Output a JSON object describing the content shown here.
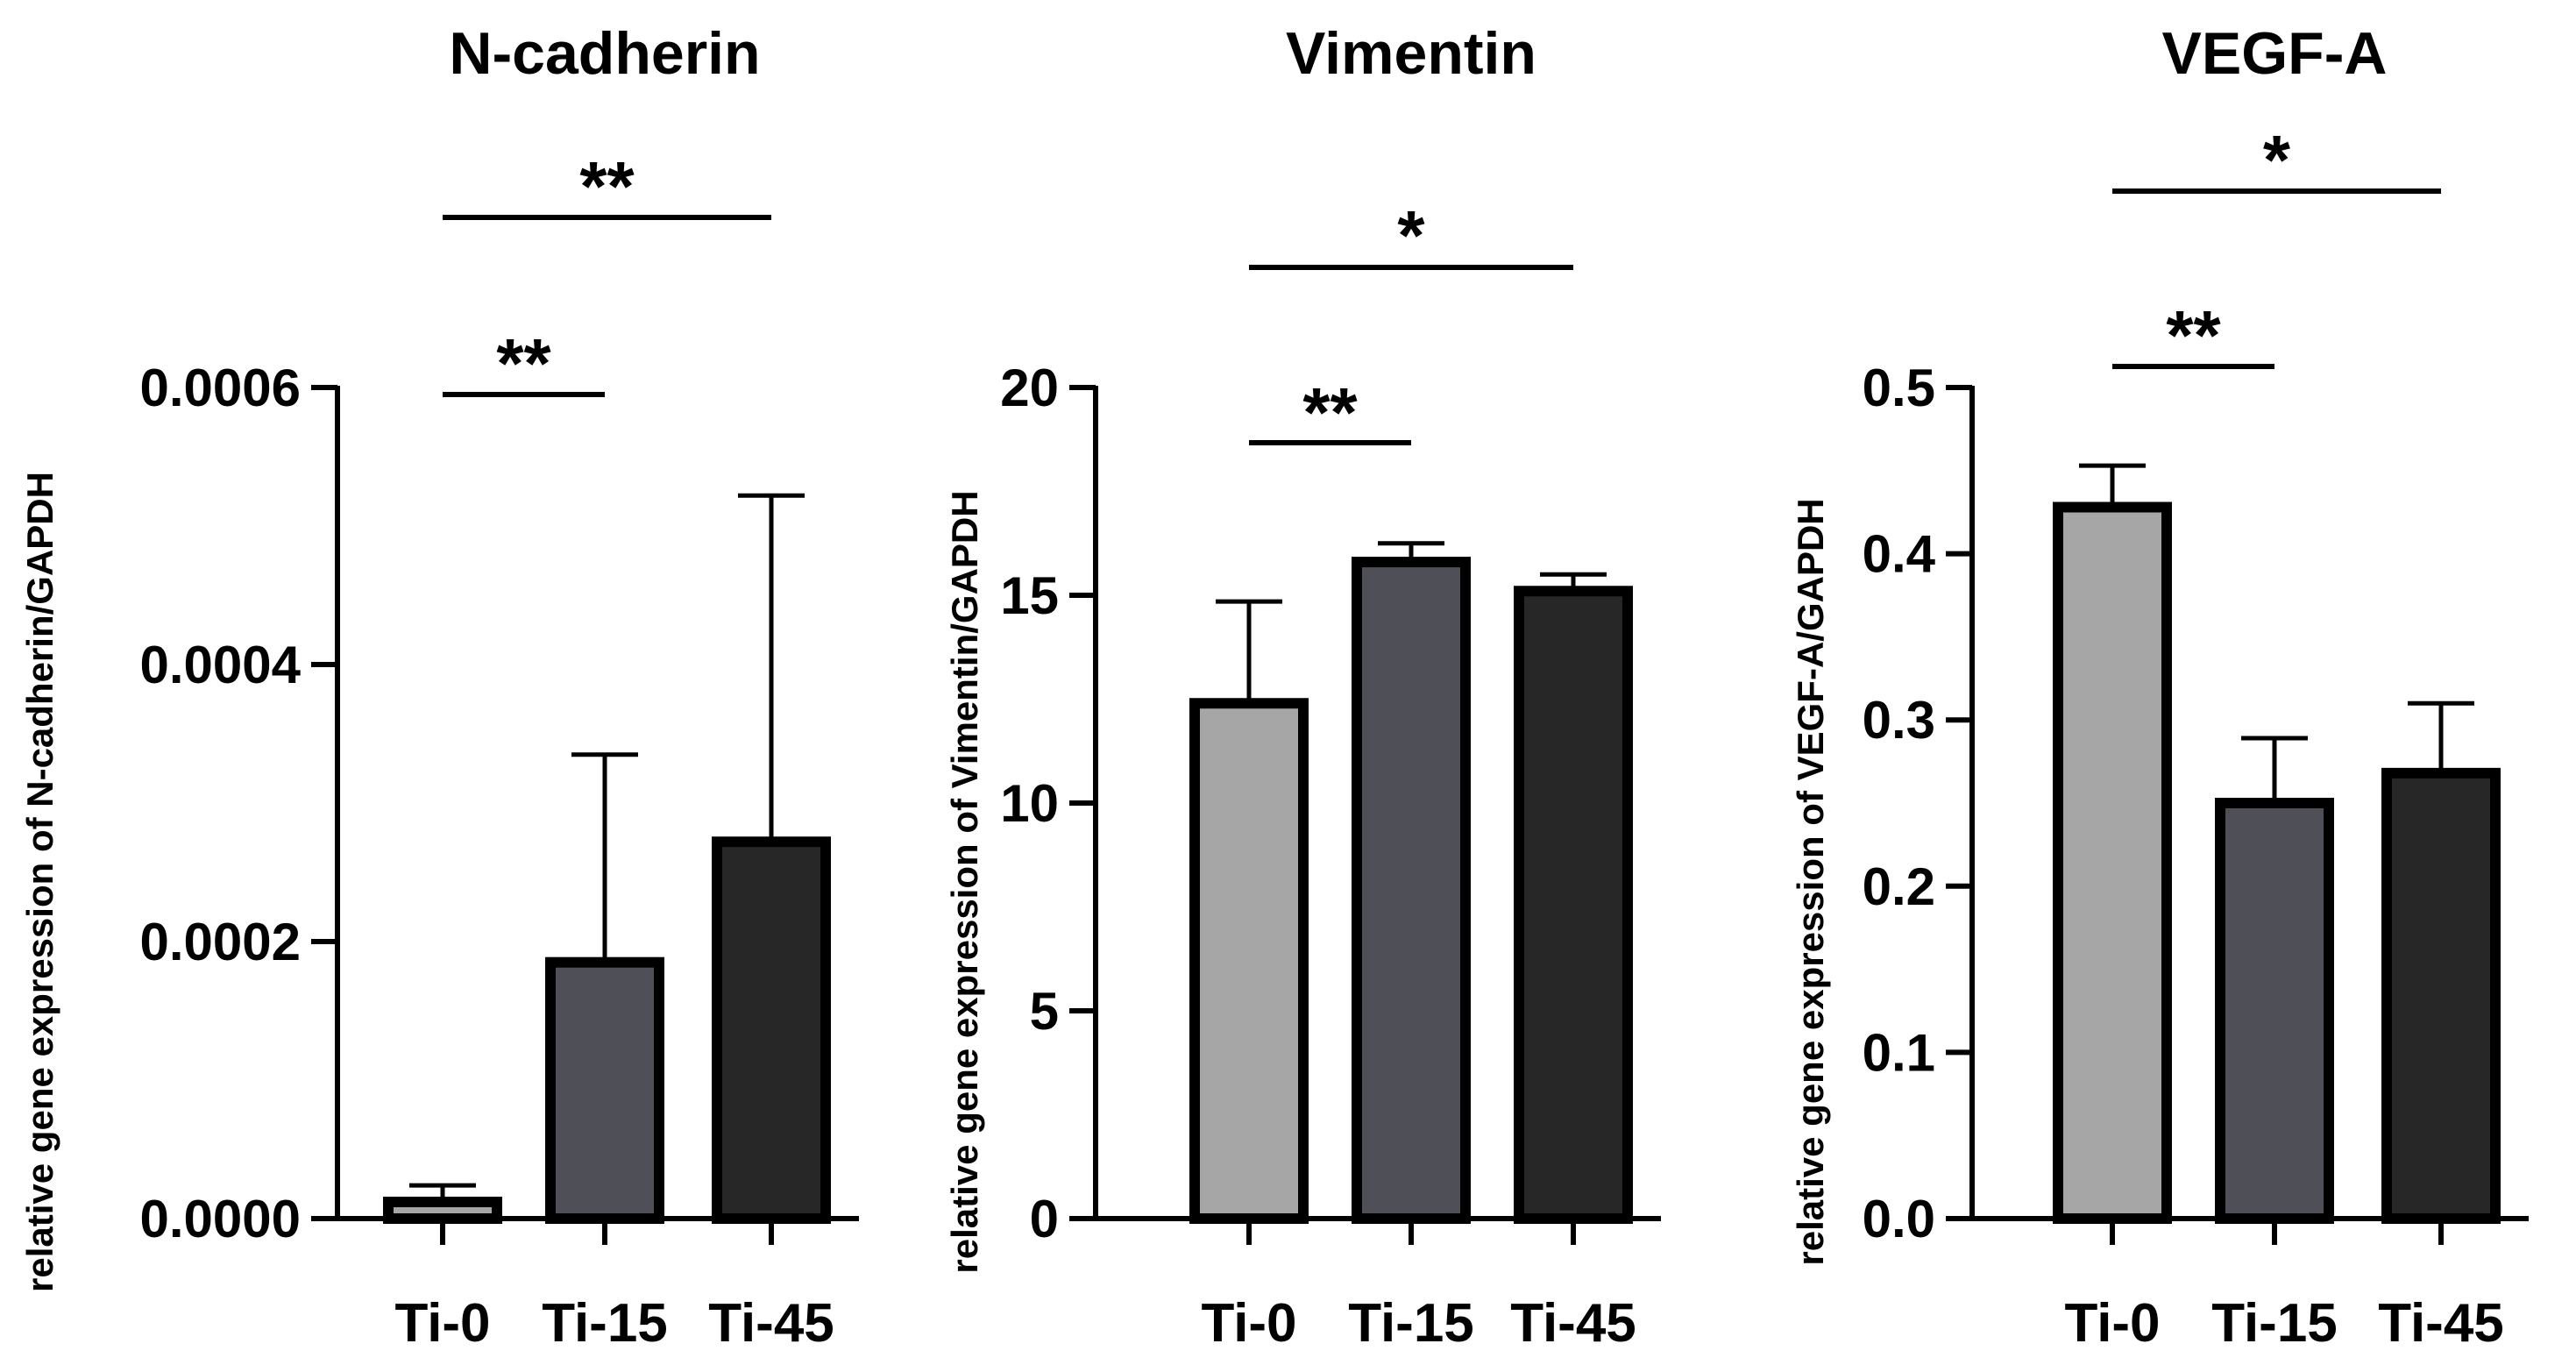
{
  "chart_data": [
    {
      "type": "bar",
      "title": "N-cadherin",
      "ylabel": "relative gene expression of N-cadherin/GAPDH",
      "xlabel": "",
      "categories": [
        "Ti-0",
        "Ti-15",
        "Ti-45"
      ],
      "values": [
        1.2e-05,
        0.000185,
        0.000272
      ],
      "errors": [
        1.2e-05,
        0.00015,
        0.00025
      ],
      "colors": [
        "#a6a6a6",
        "#4f4f57",
        "#272727"
      ],
      "ylim": [
        0,
        0.0006
      ],
      "yticks": [
        0,
        0.0002,
        0.0004,
        0.0006
      ],
      "ytick_labels": [
        "0.0000",
        "0.0002",
        "0.0004",
        "0.0006"
      ],
      "significance": [
        {
          "from": "Ti-0",
          "to": "Ti-15",
          "label": "**"
        },
        {
          "from": "Ti-0",
          "to": "Ti-45",
          "label": "**"
        }
      ]
    },
    {
      "type": "bar",
      "title": "Vimentin",
      "ylabel": "relative gene expression of Vimentin/GAPDH",
      "xlabel": "",
      "categories": [
        "Ti-0",
        "Ti-15",
        "Ti-45"
      ],
      "values": [
        12.4,
        15.8,
        15.1
      ],
      "errors": [
        2.45,
        0.45,
        0.4
      ],
      "colors": [
        "#a6a6a6",
        "#4f4f57",
        "#272727"
      ],
      "ylim": [
        0,
        20
      ],
      "yticks": [
        0,
        5,
        10,
        15,
        20
      ],
      "ytick_labels": [
        "0",
        "5",
        "10",
        "15",
        "20"
      ],
      "significance": [
        {
          "from": "Ti-0",
          "to": "Ti-15",
          "label": "**"
        },
        {
          "from": "Ti-0",
          "to": "Ti-45",
          "label": "*"
        }
      ]
    },
    {
      "type": "bar",
      "title": "VEGF-A",
      "ylabel": "relative gene expression of VEGF-A/GAPDH",
      "xlabel": "",
      "categories": [
        "Ti-0",
        "Ti-15",
        "Ti-45"
      ],
      "values": [
        0.428,
        0.25,
        0.268
      ],
      "errors": [
        0.025,
        0.039,
        0.042
      ],
      "colors": [
        "#a6a6a6",
        "#4f4f57",
        "#272727"
      ],
      "ylim": [
        0,
        0.5
      ],
      "yticks": [
        0,
        0.1,
        0.2,
        0.3,
        0.4,
        0.5
      ],
      "ytick_labels": [
        "0.0",
        "0.1",
        "0.2",
        "0.3",
        "0.4",
        "0.5"
      ],
      "significance": [
        {
          "from": "Ti-0",
          "to": "Ti-15",
          "label": "**"
        },
        {
          "from": "Ti-0",
          "to": "Ti-45",
          "label": "*"
        }
      ]
    }
  ]
}
